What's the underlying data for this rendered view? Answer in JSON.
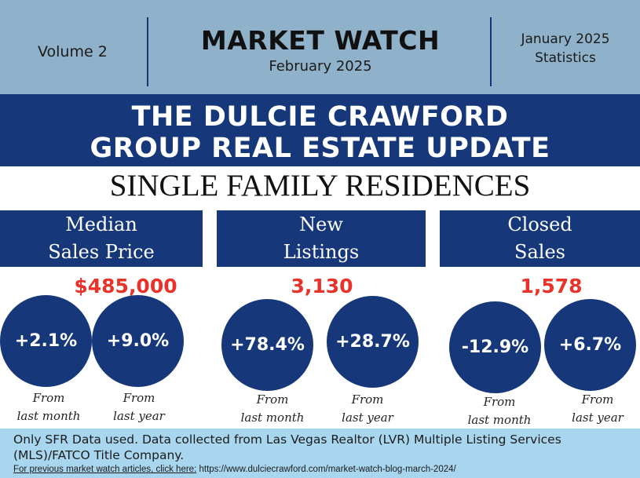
{
  "header": {
    "volume": "Volume 2",
    "title": "MARKET WATCH",
    "date": "February 2025",
    "stats_period_line1": "January 2025",
    "stats_period_line2": "Statistics"
  },
  "banner": {
    "line1": "THE DULCIE CRAWFORD",
    "line2": "GROUP REAL ESTATE UPDATE"
  },
  "subtitle": "SINGLE FAMILY RESIDENCES",
  "metrics": [
    {
      "label_line1": "Median",
      "label_line2": "Sales Price",
      "value": "$485,000",
      "month_change": "+2.1%",
      "year_change": "+9.0%"
    },
    {
      "label_line1": "New",
      "label_line2": "Listings",
      "value": "3,130",
      "month_change": "+78.4%",
      "year_change": "+28.7%"
    },
    {
      "label_line1": "Closed",
      "label_line2": "Sales",
      "value": "1,578",
      "month_change": "-12.9%",
      "year_change": "+6.7%"
    }
  ],
  "captions": {
    "from": "From",
    "last_month": "last month",
    "last_year": "last year"
  },
  "footer": {
    "note": "Only SFR Data used. Data collected from Las Vegas Realtor (LVR) Multiple Listing Services (MLS)/FATCO Title Company.",
    "link_label": "For previous market watch articles, click here:",
    "link_url": " https://www.dulciecrawford.com/market-watch-blog-march-2024/"
  },
  "colors": {
    "header_bg": "#8fb1c9",
    "navy": "#16387a",
    "value_red": "#e8322a",
    "footer_bg": "#a9d6ef"
  }
}
